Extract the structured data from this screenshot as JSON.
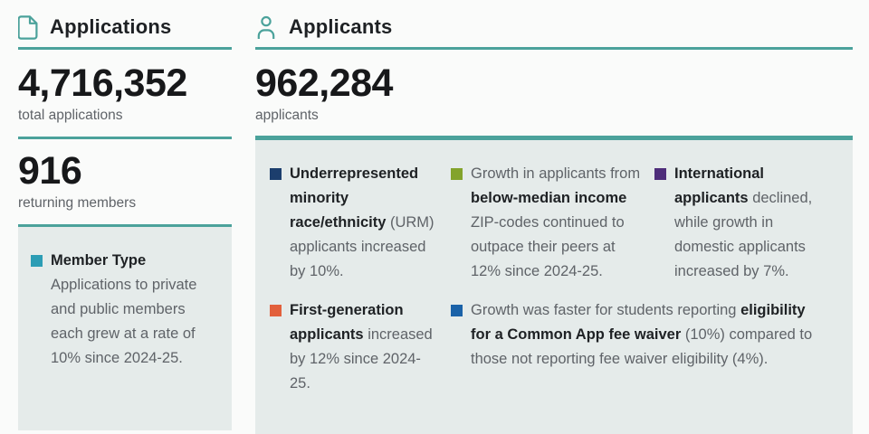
{
  "colors": {
    "teal_accent": "#4BA29B",
    "panel_background": "#E5EBEA",
    "heading_text": "#1E2124",
    "body_text": "#5F6368",
    "bullet_member_type": "#2C9DB5",
    "bullet_urm": "#1C3E6D",
    "bullet_income": "#83A32B",
    "bullet_international": "#4E2D7A",
    "bullet_first_gen": "#E2603C",
    "bullet_fee_waiver": "#1A62A8"
  },
  "applications": {
    "title": "Applications",
    "icon": "document-icon",
    "stat_total": {
      "value": "4,716,352",
      "label": "total applications"
    },
    "stat_members": {
      "value": "916",
      "label": "returning members"
    },
    "member_type": {
      "title": "Member Type",
      "body": "Applications to private and public members each grew at a rate of 10% since 2024-25."
    }
  },
  "applicants": {
    "title": "Applicants",
    "icon": "person-icon",
    "stat": {
      "value": "962,284",
      "label": "applicants"
    },
    "highlights": [
      {
        "name": "urm",
        "segments": [
          {
            "t": "Underrepresented minority race/ethnicity",
            "b": true
          },
          {
            "t": " (URM) applicants increased by 10%.",
            "b": false
          }
        ]
      },
      {
        "name": "below-median-income",
        "segments": [
          {
            "t": "Growth in applicants from ",
            "b": false
          },
          {
            "t": "below-median income",
            "b": true
          },
          {
            "t": " ZIP-codes continued to outpace their peers at 12% since 2024-25.",
            "b": false
          }
        ]
      },
      {
        "name": "international",
        "segments": [
          {
            "t": "International applicants",
            "b": true
          },
          {
            "t": " declined, while growth in domestic applicants increased by 7%.",
            "b": false
          }
        ]
      },
      {
        "name": "first-generation",
        "segments": [
          {
            "t": "First-generation applicants",
            "b": true
          },
          {
            "t": " increased by 12% since 2024-25.",
            "b": false
          }
        ]
      },
      {
        "name": "fee-waiver",
        "segments": [
          {
            "t": "Growth was faster for students reporting ",
            "b": false
          },
          {
            "t": "eligibility for a Common App fee waiver",
            "b": true
          },
          {
            "t": " (10%) compared to those not reporting fee waiver eligibility (4%).",
            "b": false
          }
        ]
      }
    ]
  }
}
